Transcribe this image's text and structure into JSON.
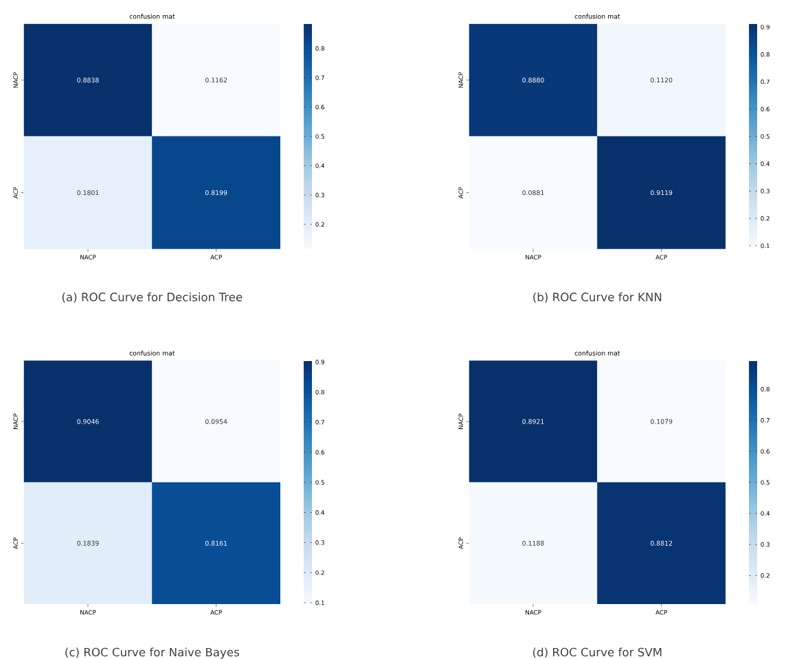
{
  "chart_data": [
    {
      "type": "heatmap",
      "title": "confusion mat",
      "categories": [
        "NACP",
        "ACP"
      ],
      "y_categories": [
        "NACP",
        "ACP"
      ],
      "cells": [
        [
          0.8838,
          0.1162
        ],
        [
          0.1801,
          0.8199
        ]
      ],
      "cell_labels": [
        [
          "0.8838",
          "0.1162"
        ],
        [
          "0.1801",
          "0.8199"
        ]
      ],
      "clim": [
        0.1162,
        0.8838
      ],
      "cticks": [
        0.2,
        0.3,
        0.4,
        0.5,
        0.6,
        0.7,
        0.8
      ],
      "annotations": [
        "(a)  ROC  Curve for Decision Tree"
      ]
    },
    {
      "type": "heatmap",
      "title": "confusion mat",
      "categories": [
        "NACP",
        "ACP"
      ],
      "y_categories": [
        "NACP",
        "ACP"
      ],
      "cells": [
        [
          0.888,
          0.112
        ],
        [
          0.0881,
          0.9119
        ]
      ],
      "cell_labels": [
        [
          "0.8880",
          "0.1120"
        ],
        [
          "0.0881",
          "0.9119"
        ]
      ],
      "clim": [
        0.0881,
        0.9119
      ],
      "cticks": [
        0.1,
        0.2,
        0.3,
        0.4,
        0.5,
        0.6,
        0.7,
        0.8,
        0.9
      ],
      "annotations": [
        "(b)  ROC  Curve for KNN"
      ]
    },
    {
      "type": "heatmap",
      "title": "confusion mat",
      "categories": [
        "NACP",
        "ACP"
      ],
      "y_categories": [
        "NACP",
        "ACP"
      ],
      "cells": [
        [
          0.9046,
          0.0954
        ],
        [
          0.1839,
          0.8161
        ]
      ],
      "cell_labels": [
        [
          "0.9046",
          "0.0954"
        ],
        [
          "0.1839",
          "0.8161"
        ]
      ],
      "clim": [
        0.0954,
        0.9046
      ],
      "cticks": [
        0.1,
        0.2,
        0.3,
        0.4,
        0.5,
        0.6,
        0.7,
        0.8,
        0.9
      ],
      "annotations": [
        "(c)  ROC  Curve for Naive Bayes"
      ]
    },
    {
      "type": "heatmap",
      "title": "confusion mat",
      "categories": [
        "NACP",
        "ACP"
      ],
      "y_categories": [
        "NACP",
        "ACP"
      ],
      "cells": [
        [
          0.8921,
          0.1079
        ],
        [
          0.1188,
          0.8812
        ]
      ],
      "cell_labels": [
        [
          "0.8921",
          "0.1079"
        ],
        [
          "0.1188",
          "0.8812"
        ]
      ],
      "clim": [
        0.1079,
        0.8921
      ],
      "cticks": [
        0.2,
        0.3,
        0.4,
        0.5,
        0.6,
        0.7,
        0.8
      ],
      "annotations": [
        "(d)  ROC  Curve for SVM"
      ]
    }
  ]
}
